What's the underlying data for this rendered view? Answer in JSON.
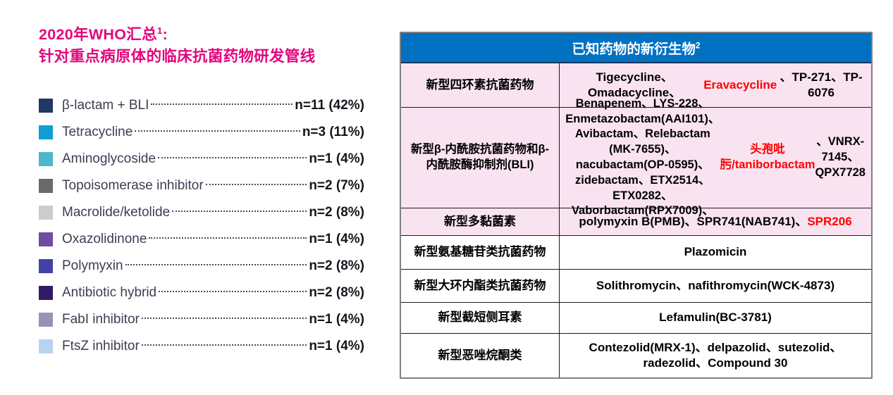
{
  "colors": {
    "title_pink": "#E2077C",
    "header_blue": "#0070C0",
    "row_pink": "#FAE3F0",
    "highlight_red": "#FF0000"
  },
  "left_panel": {
    "title_line1_rich": [
      {
        "text": "2020年WHO汇总"
      },
      {
        "text": "1",
        "sup": true
      },
      {
        "text": ":"
      }
    ],
    "title_line2": "针对重点病原体的临床抗菌药物研发管线",
    "legend": [
      {
        "label": "β-lactam + BLI",
        "value": "n=11 (42%)",
        "color": "#1F3864"
      },
      {
        "label": "Tetracycline",
        "value": "n=3 (11%)",
        "color": "#0F9ED5"
      },
      {
        "label": "Aminoglycoside",
        "value": "n=1 (4%)",
        "color": "#4BB8CC"
      },
      {
        "label": "Topoisomerase inhibitor",
        "value": "n=2 (7%)",
        "color": "#696969"
      },
      {
        "label": "Macrolide/ketolide",
        "value": "n=2 (8%)",
        "color": "#CCCCCC"
      },
      {
        "label": "Oxazolidinone",
        "value": "n=1 (4%)",
        "color": "#6F4BA1"
      },
      {
        "label": "Polymyxin",
        "value": "n=2 (8%)",
        "color": "#4242A4"
      },
      {
        "label": "Antibiotic hybrid",
        "value": "n=2 (8%)",
        "color": "#2F1C64"
      },
      {
        "label": "FabI inhibitor",
        "value": "n=1 (4%)",
        "color": "#9493B8"
      },
      {
        "label": "FtsZ inhibitor",
        "value": "n=1 (4%)",
        "color": "#B8D3ED"
      }
    ]
  },
  "table": {
    "header_rich": [
      {
        "text": "已知药物的新衍生物"
      },
      {
        "text": "2",
        "sup": true
      }
    ],
    "rows": [
      {
        "category": "新型四环素抗菌药物",
        "drugs": [
          {
            "text": "Tigecycline、Omadacycline、"
          },
          {
            "text": "Eravacycline",
            "color": "#FF0000"
          },
          {
            "text": "、TP-271、TP-6076"
          }
        ]
      },
      {
        "category": "新型β-内酰胺抗菌药物和β-内酰胺酶抑制剂(BLI)",
        "drugs": [
          {
            "text": "Benapenem、LYS-228、Enmetazobactam(AAI101)、Avibactam、Relebactam (MK-7655)、nacubactam(OP-0595)、zidebactam、ETX2514、ETX0282、Vaborbactam(RPX7009)、"
          },
          {
            "text": "头孢吡肟/taniborbactam",
            "color": "#FF0000"
          },
          {
            "text": "、VNRX-7145、QPX7728"
          }
        ]
      },
      {
        "category": "新型多黏菌素",
        "drugs": [
          {
            "text": "polymyxin B(PMB)、SPR741(NAB741)、"
          },
          {
            "text": "SPR206",
            "color": "#FF0000"
          }
        ]
      },
      {
        "category": "新型氨基糖苷类抗菌药物",
        "drugs": [
          {
            "text": "Plazomicin"
          }
        ]
      },
      {
        "category": "新型大环内酯类抗菌药物",
        "drugs": [
          {
            "text": "Solithromycin、nafithromycin(WCK-4873)"
          }
        ]
      },
      {
        "category": "新型截短侧耳素",
        "drugs": [
          {
            "text": "Lefamulin(BC-3781)"
          }
        ]
      },
      {
        "category": "新型恶唑烷酮类",
        "drugs": [
          {
            "text": "Contezolid(MRX-1)、delpazolid、sutezolid、radezolid、Compound 30"
          }
        ]
      }
    ]
  }
}
